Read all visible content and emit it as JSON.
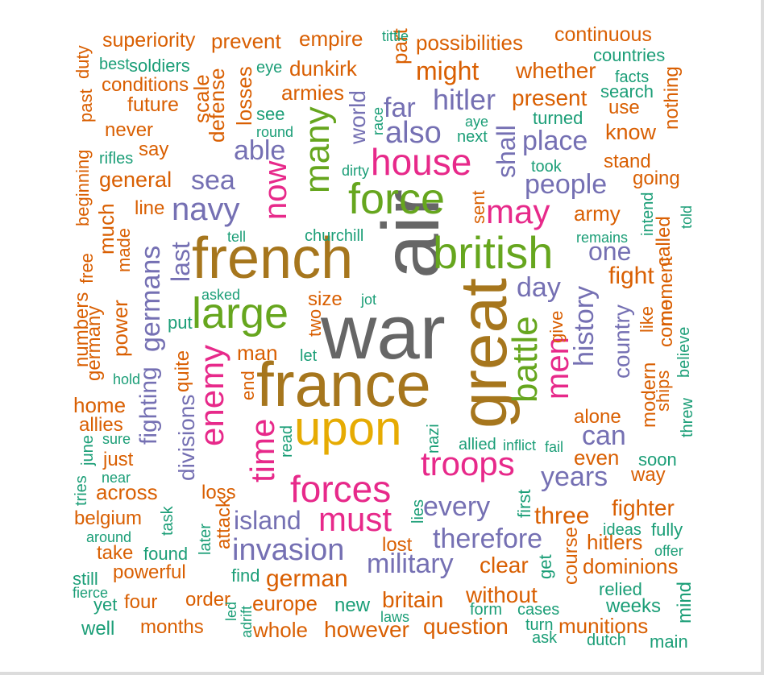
{
  "palette": {
    "orange": "#d95f02",
    "teal": "#1b9e77",
    "purple": "#7570b3",
    "magenta": "#e7298a",
    "green": "#66a61e",
    "gold": "#e6ab02",
    "brown": "#a6761d",
    "gray": "#666666"
  },
  "words": [
    {
      "text": "war",
      "color": "gray",
      "rotated": false
    },
    {
      "text": "air",
      "color": "gray",
      "rotated": true
    },
    {
      "text": "french",
      "color": "brown",
      "rotated": false
    },
    {
      "text": "france",
      "color": "brown",
      "rotated": false
    },
    {
      "text": "great",
      "color": "brown",
      "rotated": true
    },
    {
      "text": "british",
      "color": "green",
      "rotated": false
    },
    {
      "text": "upon",
      "color": "gold",
      "rotated": false
    },
    {
      "text": "force",
      "color": "green",
      "rotated": false
    },
    {
      "text": "large",
      "color": "green",
      "rotated": false
    },
    {
      "text": "many",
      "color": "green",
      "rotated": true
    },
    {
      "text": "battle",
      "color": "green",
      "rotated": true
    },
    {
      "text": "house",
      "color": "magenta",
      "rotated": false
    },
    {
      "text": "forces",
      "color": "magenta",
      "rotated": false
    },
    {
      "text": "troops",
      "color": "magenta",
      "rotated": false
    },
    {
      "text": "enemy",
      "color": "magenta",
      "rotated": true
    },
    {
      "text": "time",
      "color": "magenta",
      "rotated": true
    },
    {
      "text": "may",
      "color": "magenta",
      "rotated": false
    },
    {
      "text": "must",
      "color": "magenta",
      "rotated": false
    },
    {
      "text": "now",
      "color": "magenta",
      "rotated": true
    },
    {
      "text": "men",
      "color": "magenta",
      "rotated": true
    },
    {
      "text": "invasion",
      "color": "purple",
      "rotated": false
    },
    {
      "text": "navy",
      "color": "purple",
      "rotated": false
    },
    {
      "text": "also",
      "color": "purple",
      "rotated": false
    },
    {
      "text": "hitler",
      "color": "purple",
      "rotated": false
    },
    {
      "text": "place",
      "color": "purple",
      "rotated": false
    },
    {
      "text": "people",
      "color": "purple",
      "rotated": false
    },
    {
      "text": "military",
      "color": "purple",
      "rotated": false
    },
    {
      "text": "therefore",
      "color": "purple",
      "rotated": false
    },
    {
      "text": "every",
      "color": "purple",
      "rotated": false
    },
    {
      "text": "years",
      "color": "purple",
      "rotated": false
    },
    {
      "text": "history",
      "color": "purple",
      "rotated": true
    },
    {
      "text": "germans",
      "color": "purple",
      "rotated": true
    },
    {
      "text": "able",
      "color": "purple",
      "rotated": false
    },
    {
      "text": "sea",
      "color": "purple",
      "rotated": false
    },
    {
      "text": "far",
      "color": "purple",
      "rotated": false
    },
    {
      "text": "shall",
      "color": "purple",
      "rotated": true
    },
    {
      "text": "day",
      "color": "purple",
      "rotated": false
    },
    {
      "text": "one",
      "color": "purple",
      "rotated": false
    },
    {
      "text": "last",
      "color": "purple",
      "rotated": true
    },
    {
      "text": "island",
      "color": "purple",
      "rotated": false
    },
    {
      "text": "can",
      "color": "purple",
      "rotated": false
    },
    {
      "text": "country",
      "color": "purple",
      "rotated": true
    },
    {
      "text": "fighting",
      "color": "purple",
      "rotated": true
    },
    {
      "text": "divisions",
      "color": "purple",
      "rotated": true
    },
    {
      "text": "world",
      "color": "purple",
      "rotated": true
    },
    {
      "text": "superiority",
      "color": "orange",
      "rotated": false
    },
    {
      "text": "prevent",
      "color": "orange",
      "rotated": false
    },
    {
      "text": "empire",
      "color": "orange",
      "rotated": false
    },
    {
      "text": "possibilities",
      "color": "orange",
      "rotated": false
    },
    {
      "text": "continuous",
      "color": "orange",
      "rotated": false
    },
    {
      "text": "dunkirk",
      "color": "orange",
      "rotated": false
    },
    {
      "text": "might",
      "color": "orange",
      "rotated": false
    },
    {
      "text": "whether",
      "color": "orange",
      "rotated": false
    },
    {
      "text": "armies",
      "color": "orange",
      "rotated": false
    },
    {
      "text": "conditions",
      "color": "orange",
      "rotated": false
    },
    {
      "text": "future",
      "color": "orange",
      "rotated": false
    },
    {
      "text": "present",
      "color": "orange",
      "rotated": false
    },
    {
      "text": "never",
      "color": "orange",
      "rotated": false
    },
    {
      "text": "say",
      "color": "orange",
      "rotated": false
    },
    {
      "text": "know",
      "color": "orange",
      "rotated": false
    },
    {
      "text": "general",
      "color": "orange",
      "rotated": false
    },
    {
      "text": "stand",
      "color": "orange",
      "rotated": false
    },
    {
      "text": "going",
      "color": "orange",
      "rotated": false
    },
    {
      "text": "line",
      "color": "orange",
      "rotated": false
    },
    {
      "text": "army",
      "color": "orange",
      "rotated": false
    },
    {
      "text": "fight",
      "color": "orange",
      "rotated": false
    },
    {
      "text": "size",
      "color": "orange",
      "rotated": false
    },
    {
      "text": "man",
      "color": "orange",
      "rotated": false
    },
    {
      "text": "home",
      "color": "orange",
      "rotated": false
    },
    {
      "text": "allies",
      "color": "orange",
      "rotated": false
    },
    {
      "text": "just",
      "color": "orange",
      "rotated": false
    },
    {
      "text": "across",
      "color": "orange",
      "rotated": false
    },
    {
      "text": "loss",
      "color": "orange",
      "rotated": false
    },
    {
      "text": "belgium",
      "color": "orange",
      "rotated": false
    },
    {
      "text": "take",
      "color": "orange",
      "rotated": false
    },
    {
      "text": "powerful",
      "color": "orange",
      "rotated": false
    },
    {
      "text": "german",
      "color": "orange",
      "rotated": false
    },
    {
      "text": "lost",
      "color": "orange",
      "rotated": false
    },
    {
      "text": "clear",
      "color": "orange",
      "rotated": false
    },
    {
      "text": "three",
      "color": "orange",
      "rotated": false
    },
    {
      "text": "fighter",
      "color": "orange",
      "rotated": false
    },
    {
      "text": "hitlers",
      "color": "orange",
      "rotated": false
    },
    {
      "text": "dominions",
      "color": "orange",
      "rotated": false
    },
    {
      "text": "four",
      "color": "orange",
      "rotated": false
    },
    {
      "text": "order",
      "color": "orange",
      "rotated": false
    },
    {
      "text": "europe",
      "color": "orange",
      "rotated": false
    },
    {
      "text": "britain",
      "color": "orange",
      "rotated": false
    },
    {
      "text": "without",
      "color": "orange",
      "rotated": false
    },
    {
      "text": "months",
      "color": "orange",
      "rotated": false
    },
    {
      "text": "whole",
      "color": "orange",
      "rotated": false
    },
    {
      "text": "however",
      "color": "orange",
      "rotated": false
    },
    {
      "text": "question",
      "color": "orange",
      "rotated": false
    },
    {
      "text": "munitions",
      "color": "orange",
      "rotated": false
    },
    {
      "text": "alone",
      "color": "orange",
      "rotated": false
    },
    {
      "text": "even",
      "color": "orange",
      "rotated": false
    },
    {
      "text": "way",
      "color": "orange",
      "rotated": false
    },
    {
      "text": "use",
      "color": "orange",
      "rotated": false
    },
    {
      "text": "past",
      "color": "orange",
      "rotated": true
    },
    {
      "text": "duty",
      "color": "orange",
      "rotated": true
    },
    {
      "text": "beginning",
      "color": "orange",
      "rotated": true
    },
    {
      "text": "much",
      "color": "orange",
      "rotated": true
    },
    {
      "text": "free",
      "color": "orange",
      "rotated": true
    },
    {
      "text": "made",
      "color": "orange",
      "rotated": true
    },
    {
      "text": "power",
      "color": "orange",
      "rotated": true
    },
    {
      "text": "numbers",
      "color": "orange",
      "rotated": true
    },
    {
      "text": "germany",
      "color": "orange",
      "rotated": true
    },
    {
      "text": "quite",
      "color": "orange",
      "rotated": true
    },
    {
      "text": "scale",
      "color": "orange",
      "rotated": true
    },
    {
      "text": "defense",
      "color": "orange",
      "rotated": true
    },
    {
      "text": "losses",
      "color": "orange",
      "rotated": true
    },
    {
      "text": "part",
      "color": "orange",
      "rotated": true
    },
    {
      "text": "nothing",
      "color": "orange",
      "rotated": true
    },
    {
      "text": "called",
      "color": "orange",
      "rotated": true
    },
    {
      "text": "moment",
      "color": "orange",
      "rotated": true
    },
    {
      "text": "come",
      "color": "orange",
      "rotated": true
    },
    {
      "text": "like",
      "color": "orange",
      "rotated": true
    },
    {
      "text": "modern",
      "color": "orange",
      "rotated": true
    },
    {
      "text": "ships",
      "color": "orange",
      "rotated": true
    },
    {
      "text": "give",
      "color": "orange",
      "rotated": true
    },
    {
      "text": "end",
      "color": "orange",
      "rotated": true
    },
    {
      "text": "attack",
      "color": "orange",
      "rotated": true
    },
    {
      "text": "course",
      "color": "orange",
      "rotated": true
    },
    {
      "text": "two",
      "color": "orange",
      "rotated": true
    },
    {
      "text": "sent",
      "color": "orange",
      "rotated": true
    },
    {
      "text": "best",
      "color": "teal",
      "rotated": false
    },
    {
      "text": "soldiers",
      "color": "teal",
      "rotated": false
    },
    {
      "text": "eye",
      "color": "teal",
      "rotated": false
    },
    {
      "text": "tittle",
      "color": "teal",
      "rotated": false
    },
    {
      "text": "countries",
      "color": "teal",
      "rotated": false
    },
    {
      "text": "facts",
      "color": "teal",
      "rotated": false
    },
    {
      "text": "search",
      "color": "teal",
      "rotated": false
    },
    {
      "text": "see",
      "color": "teal",
      "rotated": false
    },
    {
      "text": "round",
      "color": "teal",
      "rotated": false
    },
    {
      "text": "aye",
      "color": "teal",
      "rotated": false
    },
    {
      "text": "next",
      "color": "teal",
      "rotated": false
    },
    {
      "text": "turned",
      "color": "teal",
      "rotated": false
    },
    {
      "text": "rifles",
      "color": "teal",
      "rotated": false
    },
    {
      "text": "dirty",
      "color": "teal",
      "rotated": false
    },
    {
      "text": "took",
      "color": "teal",
      "rotated": false
    },
    {
      "text": "tell",
      "color": "teal",
      "rotated": false
    },
    {
      "text": "churchill",
      "color": "teal",
      "rotated": false
    },
    {
      "text": "remains",
      "color": "teal",
      "rotated": false
    },
    {
      "text": "asked",
      "color": "teal",
      "rotated": false
    },
    {
      "text": "jot",
      "color": "teal",
      "rotated": false
    },
    {
      "text": "put",
      "color": "teal",
      "rotated": false
    },
    {
      "text": "let",
      "color": "teal",
      "rotated": false
    },
    {
      "text": "hold",
      "color": "teal",
      "rotated": false
    },
    {
      "text": "sure",
      "color": "teal",
      "rotated": false
    },
    {
      "text": "near",
      "color": "teal",
      "rotated": false
    },
    {
      "text": "allied",
      "color": "teal",
      "rotated": false
    },
    {
      "text": "inflict",
      "color": "teal",
      "rotated": false
    },
    {
      "text": "fail",
      "color": "teal",
      "rotated": false
    },
    {
      "text": "soon",
      "color": "teal",
      "rotated": false
    },
    {
      "text": "around",
      "color": "teal",
      "rotated": false
    },
    {
      "text": "found",
      "color": "teal",
      "rotated": false
    },
    {
      "text": "ideas",
      "color": "teal",
      "rotated": false
    },
    {
      "text": "fully",
      "color": "teal",
      "rotated": false
    },
    {
      "text": "offer",
      "color": "teal",
      "rotated": false
    },
    {
      "text": "still",
      "color": "teal",
      "rotated": false
    },
    {
      "text": "fierce",
      "color": "teal",
      "rotated": false
    },
    {
      "text": "yet",
      "color": "teal",
      "rotated": false
    },
    {
      "text": "find",
      "color": "teal",
      "rotated": false
    },
    {
      "text": "new",
      "color": "teal",
      "rotated": false
    },
    {
      "text": "laws",
      "color": "teal",
      "rotated": false
    },
    {
      "text": "form",
      "color": "teal",
      "rotated": false
    },
    {
      "text": "cases",
      "color": "teal",
      "rotated": false
    },
    {
      "text": "relied",
      "color": "teal",
      "rotated": false
    },
    {
      "text": "weeks",
      "color": "teal",
      "rotated": false
    },
    {
      "text": "well",
      "color": "teal",
      "rotated": false
    },
    {
      "text": "turn",
      "color": "teal",
      "rotated": false
    },
    {
      "text": "ask",
      "color": "teal",
      "rotated": false
    },
    {
      "text": "dutch",
      "color": "teal",
      "rotated": false
    },
    {
      "text": "main",
      "color": "teal",
      "rotated": false
    },
    {
      "text": "race",
      "color": "teal",
      "rotated": true
    },
    {
      "text": "intend",
      "color": "teal",
      "rotated": true
    },
    {
      "text": "told",
      "color": "teal",
      "rotated": true
    },
    {
      "text": "believe",
      "color": "teal",
      "rotated": true
    },
    {
      "text": "threw",
      "color": "teal",
      "rotated": true
    },
    {
      "text": "nazi",
      "color": "teal",
      "rotated": true
    },
    {
      "text": "read",
      "color": "teal",
      "rotated": true
    },
    {
      "text": "june",
      "color": "teal",
      "rotated": true
    },
    {
      "text": "tries",
      "color": "teal",
      "rotated": true
    },
    {
      "text": "task",
      "color": "teal",
      "rotated": true
    },
    {
      "text": "later",
      "color": "teal",
      "rotated": true
    },
    {
      "text": "lies",
      "color": "teal",
      "rotated": true
    },
    {
      "text": "first",
      "color": "teal",
      "rotated": true
    },
    {
      "text": "get",
      "color": "teal",
      "rotated": true
    },
    {
      "text": "led",
      "color": "teal",
      "rotated": true
    },
    {
      "text": "adrift",
      "color": "teal",
      "rotated": true
    },
    {
      "text": "mind",
      "color": "teal",
      "rotated": true
    }
  ]
}
